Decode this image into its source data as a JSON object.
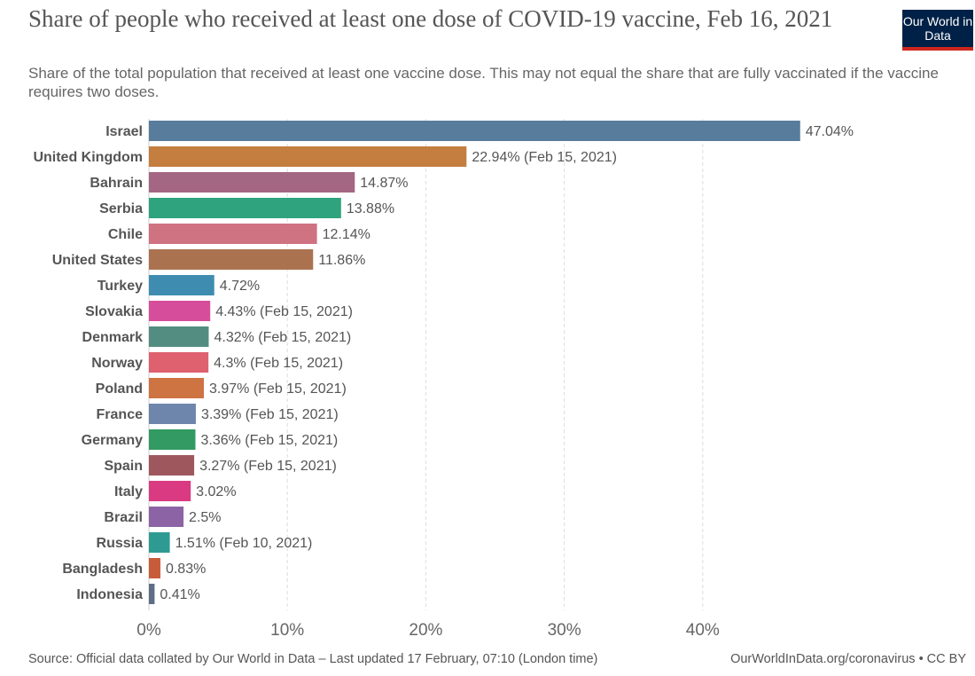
{
  "header": {
    "title": "Share of people who received at least one dose of COVID-19 vaccine, Feb 16, 2021",
    "subtitle": "Share of the total population that received at least one vaccine dose. This may not equal the share that are fully vaccinated if the vaccine requires two doses.",
    "logo": "Our World in Data"
  },
  "footer": {
    "source": "Source: Official data collated by Our World in Data – Last updated 17 February, 07:10 (London time)",
    "link": "OurWorldInData.org/coronavirus • CC BY"
  },
  "chart_data": {
    "type": "bar",
    "orientation": "horizontal",
    "xlim": [
      0,
      47.04
    ],
    "grid": true,
    "xticks": [
      {
        "v": 0,
        "label": "0%"
      },
      {
        "v": 10,
        "label": "10%"
      },
      {
        "v": 20,
        "label": "20%"
      },
      {
        "v": 30,
        "label": "30%"
      },
      {
        "v": 40,
        "label": "40%"
      }
    ],
    "bars": [
      {
        "category": "Israel",
        "value": 47.04,
        "label": "47.04%",
        "color": "#4f7597"
      },
      {
        "category": "United Kingdom",
        "value": 22.94,
        "label": "22.94% (Feb 15, 2021)",
        "color": "#c07736"
      },
      {
        "category": "Bahrain",
        "value": 14.87,
        "label": "14.87%",
        "color": "#9e5f7c"
      },
      {
        "category": "Serbia",
        "value": 13.88,
        "label": "13.88%",
        "color": "#239e76"
      },
      {
        "category": "Chile",
        "value": 12.14,
        "label": "12.14%",
        "color": "#cc6a7b"
      },
      {
        "category": "United States",
        "value": 11.86,
        "label": "11.86%",
        "color": "#a66a47"
      },
      {
        "category": "Turkey",
        "value": 4.72,
        "label": "4.72%",
        "color": "#3487ac"
      },
      {
        "category": "Slovakia",
        "value": 4.43,
        "label": "4.43% (Feb 15, 2021)",
        "color": "#d44596"
      },
      {
        "category": "Denmark",
        "value": 4.32,
        "label": "4.32% (Feb 15, 2021)",
        "color": "#4a877a"
      },
      {
        "category": "Norway",
        "value": 4.3,
        "label": "4.3% (Feb 15, 2021)",
        "color": "#dd5968"
      },
      {
        "category": "Poland",
        "value": 3.97,
        "label": "3.97% (Feb 15, 2021)",
        "color": "#cb6c38"
      },
      {
        "category": "France",
        "value": 3.39,
        "label": "3.39% (Feb 15, 2021)",
        "color": "#667ea8"
      },
      {
        "category": "Germany",
        "value": 3.36,
        "label": "3.36% (Feb 15, 2021)",
        "color": "#27955a"
      },
      {
        "category": "Spain",
        "value": 3.27,
        "label": "3.27% (Feb 15, 2021)",
        "color": "#9a4e55"
      },
      {
        "category": "Italy",
        "value": 3.02,
        "label": "3.02%",
        "color": "#d72f7a"
      },
      {
        "category": "Brazil",
        "value": 2.5,
        "label": "2.5%",
        "color": "#865ba0"
      },
      {
        "category": "Russia",
        "value": 1.51,
        "label": "1.51% (Feb 10, 2021)",
        "color": "#23968c"
      },
      {
        "category": "Bangladesh",
        "value": 0.83,
        "label": "0.83%",
        "color": "#c3532f"
      },
      {
        "category": "Indonesia",
        "value": 0.41,
        "label": "0.41%",
        "color": "#556680"
      }
    ]
  }
}
